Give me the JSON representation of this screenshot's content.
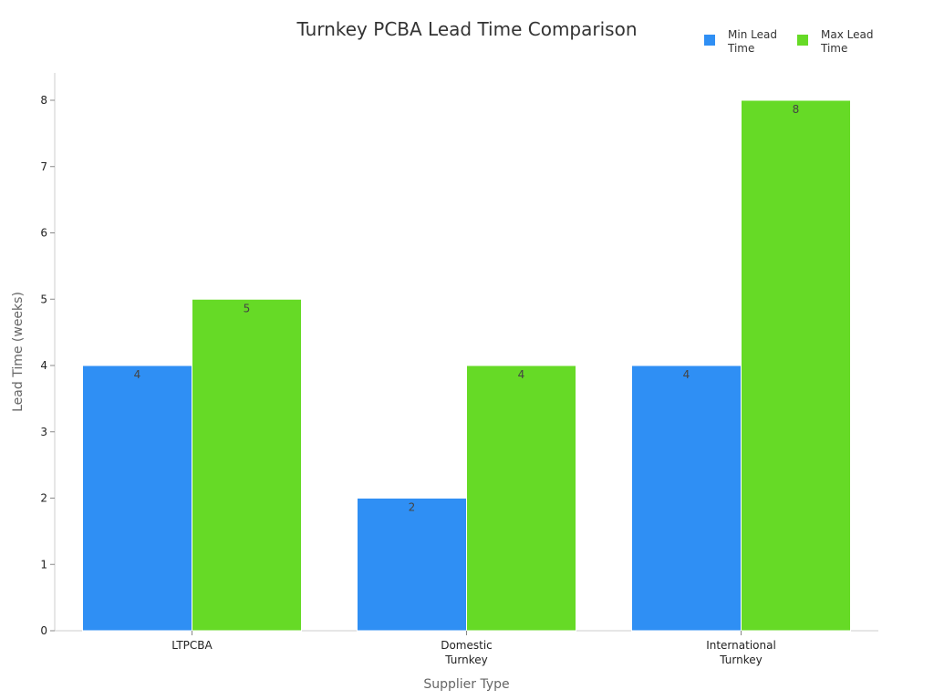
{
  "chart_data": {
    "type": "bar",
    "title": "Turnkey PCBA Lead Time Comparison",
    "xlabel": "Supplier Type",
    "ylabel": "Lead Time (weeks)",
    "categories": [
      "LTPCBA",
      "Domestic Turnkey",
      "International Turnkey"
    ],
    "category_lines": [
      [
        "LTPCBA"
      ],
      [
        "Domestic",
        "Turnkey"
      ],
      [
        "International",
        "Turnkey"
      ]
    ],
    "ylim": [
      0,
      8
    ],
    "yticks": [
      "0",
      "1",
      "2",
      "3",
      "4",
      "5",
      "6",
      "7",
      "8"
    ],
    "grid": false,
    "legend_position": "top-right",
    "series": [
      {
        "name": "Min Lead Time",
        "values": [
          4,
          2,
          4
        ],
        "color": "#2f8ff4"
      },
      {
        "name": "Max Lead Time",
        "values": [
          5,
          4,
          8
        ],
        "color": "#66da26"
      }
    ]
  }
}
